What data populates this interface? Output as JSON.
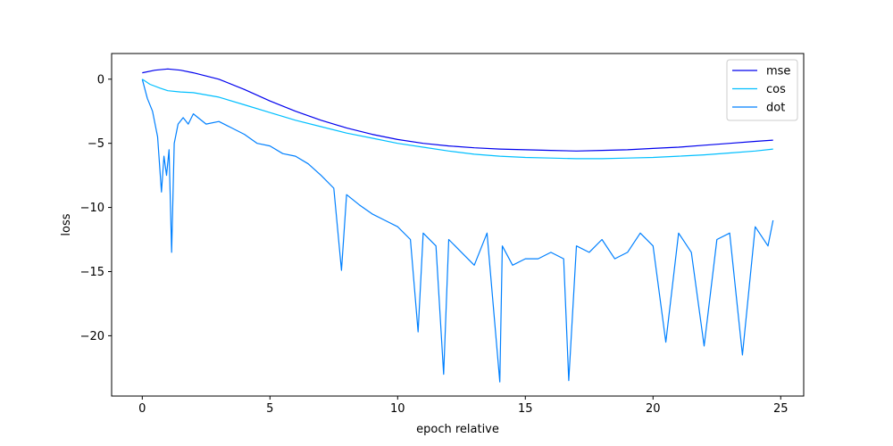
{
  "chart_data": {
    "type": "line",
    "title": "",
    "xlabel": "epoch relative",
    "ylabel": "loss",
    "xlim": [
      -1.2,
      25.9
    ],
    "ylim": [
      -24.7,
      2.0
    ],
    "xticks": [
      0,
      5,
      10,
      15,
      20,
      25
    ],
    "yticks": [
      0,
      -5,
      -10,
      -15,
      -20
    ],
    "xtick_labels": [
      "0",
      "5",
      "10",
      "15",
      "20",
      "25"
    ],
    "ytick_labels": [
      "0",
      "−5",
      "−10",
      "−15",
      "−20"
    ],
    "grid": false,
    "legend": {
      "position": "top-right",
      "entries": [
        "mse",
        "cos",
        "dot"
      ]
    },
    "series": [
      {
        "name": "mse",
        "color": "#0000ee",
        "x": [
          0,
          0.5,
          1.0,
          1.5,
          2,
          3,
          4,
          5,
          6,
          7,
          8,
          9,
          10,
          11,
          12,
          13,
          14,
          15,
          16,
          17,
          18,
          19,
          20,
          21,
          22,
          23,
          24,
          24.7
        ],
        "y": [
          0.5,
          0.7,
          0.8,
          0.7,
          0.5,
          0.0,
          -0.8,
          -1.7,
          -2.5,
          -3.2,
          -3.8,
          -4.3,
          -4.7,
          -5.0,
          -5.2,
          -5.35,
          -5.45,
          -5.5,
          -5.55,
          -5.6,
          -5.55,
          -5.5,
          -5.4,
          -5.3,
          -5.15,
          -5.0,
          -4.85,
          -4.75
        ]
      },
      {
        "name": "cos",
        "color": "#00bfff",
        "x": [
          0,
          0.3,
          0.7,
          1.0,
          1.5,
          2,
          3,
          4,
          5,
          6,
          7,
          8,
          9,
          10,
          11,
          12,
          13,
          14,
          15,
          16,
          17,
          18,
          19,
          20,
          21,
          22,
          23,
          24,
          24.7
        ],
        "y": [
          0.0,
          -0.4,
          -0.7,
          -0.9,
          -1.0,
          -1.05,
          -1.4,
          -2.0,
          -2.6,
          -3.2,
          -3.7,
          -4.2,
          -4.6,
          -5.0,
          -5.3,
          -5.6,
          -5.85,
          -6.0,
          -6.1,
          -6.15,
          -6.2,
          -6.2,
          -6.15,
          -6.1,
          -6.0,
          -5.9,
          -5.75,
          -5.6,
          -5.45
        ]
      },
      {
        "name": "dot",
        "color": "#0080ff",
        "x": [
          0,
          0.2,
          0.4,
          0.6,
          0.75,
          0.85,
          0.95,
          1.05,
          1.15,
          1.25,
          1.4,
          1.6,
          1.8,
          2.0,
          2.5,
          3.0,
          3.5,
          4.0,
          4.5,
          5.0,
          5.5,
          6.0,
          6.5,
          7.0,
          7.5,
          7.8,
          8.0,
          8.5,
          9.0,
          9.5,
          10.0,
          10.5,
          10.8,
          11.0,
          11.5,
          11.8,
          12.0,
          12.5,
          13.0,
          13.5,
          14.0,
          14.1,
          14.5,
          15.0,
          15.5,
          16.0,
          16.5,
          16.7,
          17.0,
          17.5,
          18.0,
          18.5,
          19.0,
          19.5,
          20.0,
          20.5,
          21.0,
          21.5,
          22.0,
          22.5,
          23.0,
          23.5,
          24.0,
          24.5,
          24.7
        ],
        "y": [
          0.0,
          -1.5,
          -2.5,
          -4.5,
          -8.8,
          -6.0,
          -7.5,
          -5.5,
          -13.5,
          -5.0,
          -3.5,
          -3.0,
          -3.5,
          -2.7,
          -3.5,
          -3.3,
          -3.8,
          -4.3,
          -5.0,
          -5.2,
          -5.8,
          -6.0,
          -6.6,
          -7.5,
          -8.5,
          -14.9,
          -9.0,
          -9.8,
          -10.5,
          -11.0,
          -11.5,
          -12.5,
          -19.7,
          -12.0,
          -13.0,
          -23.0,
          -12.5,
          -13.5,
          -14.5,
          -12.0,
          -23.6,
          -13.0,
          -14.5,
          -14.0,
          -14.0,
          -13.5,
          -14.0,
          -23.5,
          -13.0,
          -13.5,
          -12.5,
          -14.0,
          -13.5,
          -12.0,
          -13.0,
          -20.5,
          -12.0,
          -13.5,
          -20.8,
          -12.5,
          -12.0,
          -21.5,
          -11.5,
          -13.0,
          -11.0
        ]
      }
    ]
  }
}
